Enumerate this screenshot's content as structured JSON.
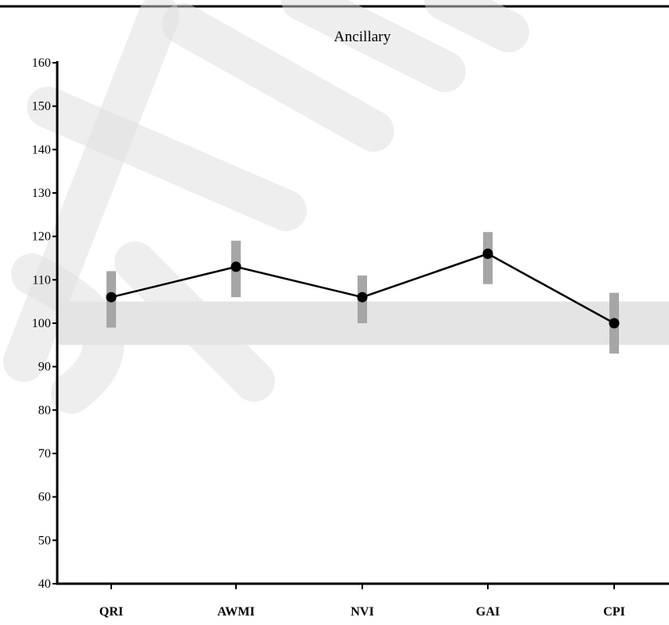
{
  "chart_data": {
    "type": "line",
    "title": "Ancillary",
    "xlabel": "",
    "ylabel": "",
    "categories": [
      "QRI",
      "AWMI",
      "NVI",
      "GAI",
      "CPI"
    ],
    "values": [
      106,
      113,
      106,
      116,
      100
    ],
    "error_ranges": [
      [
        99,
        112
      ],
      [
        106,
        119
      ],
      [
        100,
        111
      ],
      [
        109,
        121
      ],
      [
        93,
        107
      ]
    ],
    "average_band": [
      95,
      105
    ],
    "ylim": [
      40,
      160
    ],
    "yticks": [
      40,
      50,
      60,
      70,
      80,
      90,
      100,
      110,
      120,
      130,
      140,
      150,
      160
    ],
    "grid": false,
    "legend": "none",
    "colors": {
      "line": "#000000",
      "point": "#000000",
      "error_bar": "#a6a6a6",
      "average_band": "#e4e4e4",
      "watermark": "#dcdcdc"
    }
  }
}
